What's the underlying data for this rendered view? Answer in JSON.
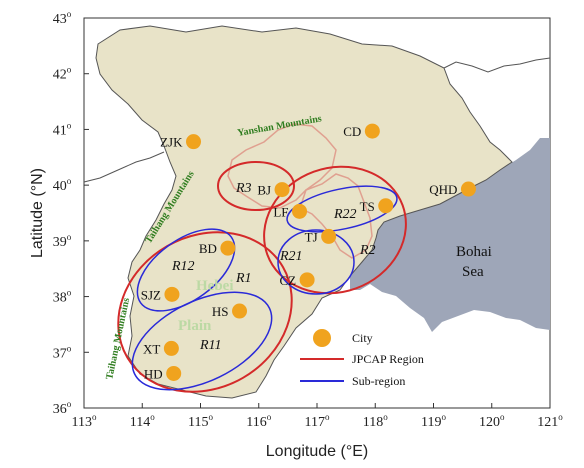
{
  "axes": {
    "x_ticks": [
      "113",
      "114",
      "115",
      "116",
      "117",
      "118",
      "119",
      "120",
      "121"
    ],
    "y_ticks": [
      "36",
      "37",
      "38",
      "39",
      "40",
      "41",
      "42",
      "43"
    ],
    "deg_symbol": "o",
    "x_title": "Longitude (°E)",
    "y_title": "Latitude (°N)"
  },
  "cities": [
    {
      "label": "ZJK",
      "lon": 114.88,
      "lat": 40.78
    },
    {
      "label": "CD",
      "lon": 117.95,
      "lat": 40.97
    },
    {
      "label": "BJ",
      "lon": 116.4,
      "lat": 39.92
    },
    {
      "label": "QHD",
      "lon": 119.6,
      "lat": 39.93
    },
    {
      "label": "LF",
      "lon": 116.7,
      "lat": 39.53
    },
    {
      "label": "TS",
      "lon": 118.18,
      "lat": 39.63
    },
    {
      "label": "TJ",
      "lon": 117.2,
      "lat": 39.08
    },
    {
      "label": "BD",
      "lon": 115.47,
      "lat": 38.87
    },
    {
      "label": "CZ",
      "lon": 116.83,
      "lat": 38.3
    },
    {
      "label": "SJZ",
      "lon": 114.51,
      "lat": 38.04
    },
    {
      "label": "HS",
      "lon": 115.67,
      "lat": 37.74
    },
    {
      "label": "XT",
      "lon": 114.5,
      "lat": 37.07
    },
    {
      "label": "HD",
      "lon": 114.54,
      "lat": 36.62
    }
  ],
  "regions": {
    "R1": "R1",
    "R2": "R2",
    "R3": "R3",
    "R11": "R11",
    "R12": "R12",
    "R21": "R21",
    "R22": "R22"
  },
  "labels": {
    "yanshan": "Yanshan Mountains",
    "taihang_upper": "Taihang Mountains",
    "taihang_lower": "Taihang Mountains",
    "hebei": "Hebei",
    "plain": "Plain",
    "bohai_line1": "Bohai",
    "bohai_line2": "Sea"
  },
  "legend": {
    "city": "City",
    "jpcap": "JPCAP Region",
    "subregion": "Sub-region"
  },
  "colors": {
    "land": "#e8e3c8",
    "sea": "#9ea6b8",
    "city": "#f0a31e",
    "jpcap": "#d42a2a",
    "subregion": "#2a2ad8",
    "admin_border": "#e0a090",
    "mountain_text": "#2f7d1f"
  }
}
